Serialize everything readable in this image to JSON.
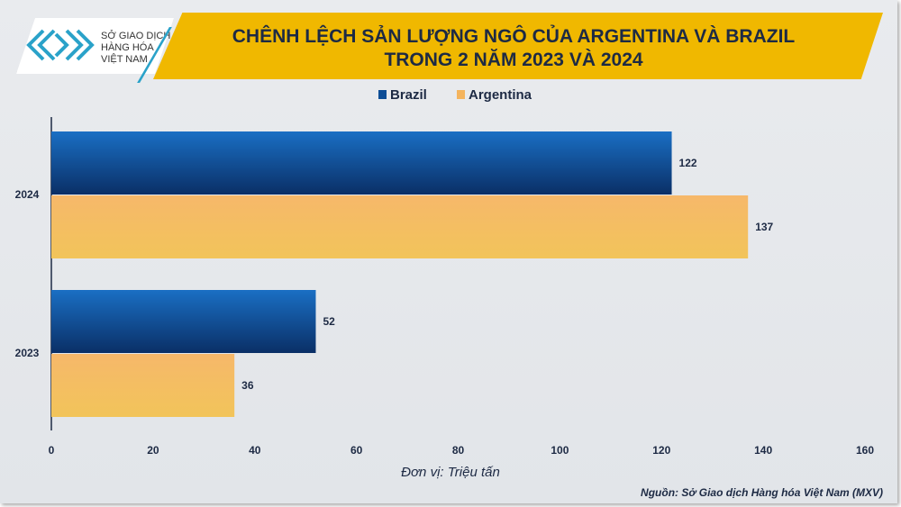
{
  "header": {
    "title_line1": "CHÊNH LỆCH SẢN LƯỢNG NGÔ CỦA ARGENTINA VÀ BRAZIL",
    "title_line2": "TRONG 2 NĂM 2023 VÀ 2024"
  },
  "logo": {
    "line1": "SỞ GIAO DỊCH",
    "line2": "HÀNG HÓA",
    "line3": "VIỆT NAM"
  },
  "chart_data": {
    "type": "bar",
    "orientation": "horizontal",
    "categories": [
      "2024",
      "2023"
    ],
    "series": [
      {
        "name": "Brazil",
        "values": [
          122,
          52
        ],
        "color": "#0d4d96"
      },
      {
        "name": "Argentina",
        "values": [
          137,
          36
        ],
        "color": "#f4b45e"
      }
    ],
    "xlim": [
      0,
      160
    ],
    "xticks": [
      0,
      20,
      40,
      60,
      80,
      100,
      120,
      140,
      160
    ],
    "xlabel": "Đơn vị: Triệu tấn",
    "legend": "top-center",
    "grid": false
  },
  "footer": {
    "source": "Nguồn: Sở Giao dịch Hàng hóa Việt Nam (MXV)"
  }
}
